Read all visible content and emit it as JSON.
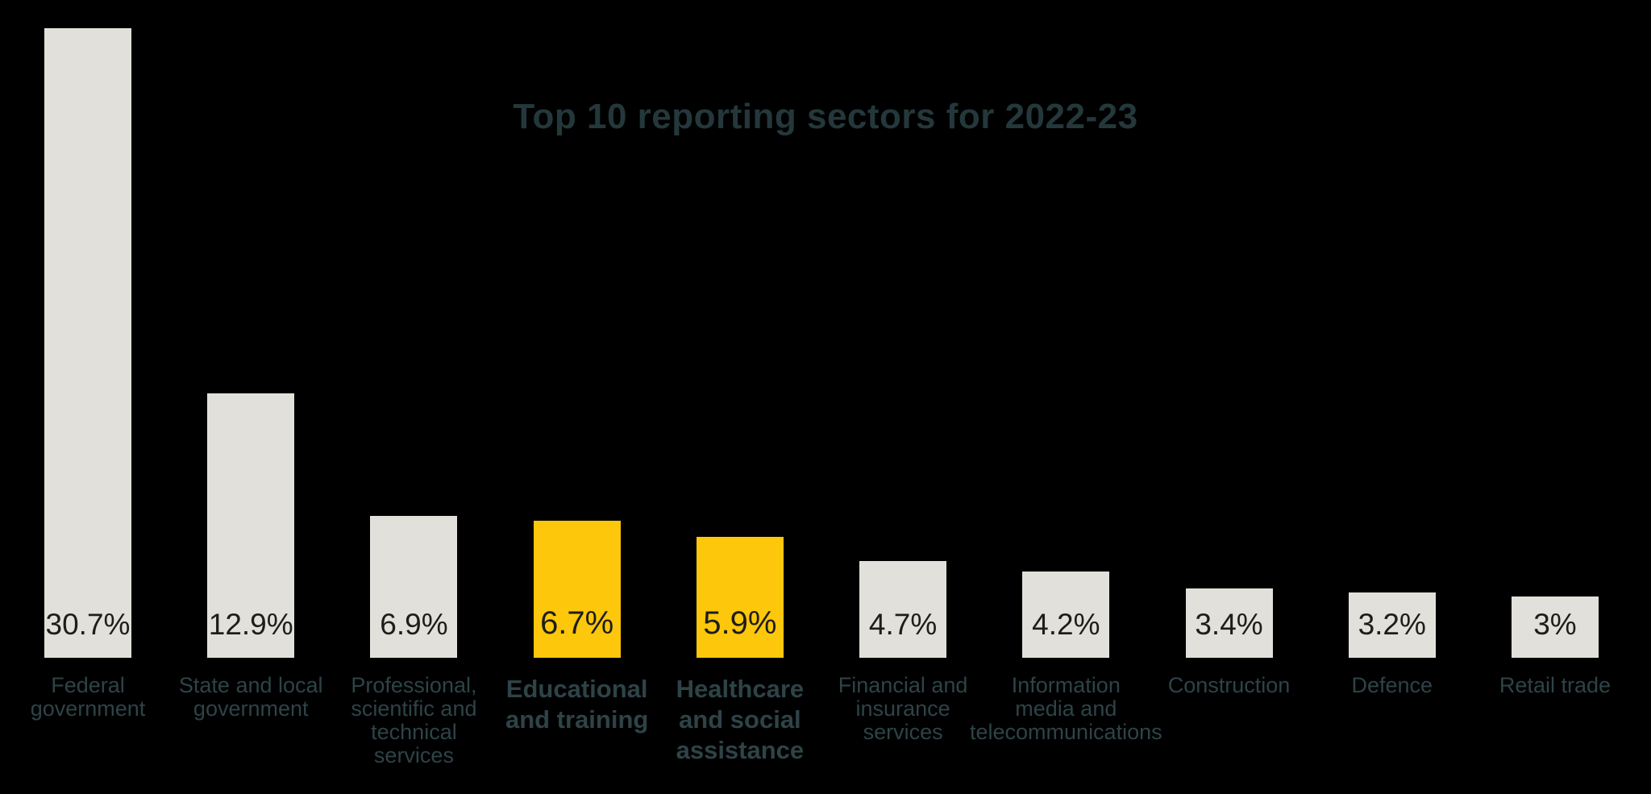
{
  "chart_data": {
    "type": "bar",
    "title": "Top 10 reporting sectors for 2022-23",
    "categories": [
      "Federal\ngovernment",
      "State and local\ngovernment",
      "Professional,\nscientific and\ntechnical\nservices",
      "Educational\nand training",
      "Healthcare\nand social\nassistance",
      "Financial and\ninsurance\nservices",
      "Information\nmedia and\ntelecommunications",
      "Construction",
      "Defence",
      "Retail trade"
    ],
    "values": [
      30.7,
      12.9,
      6.9,
      6.7,
      5.9,
      4.7,
      4.2,
      3.4,
      3.2,
      3
    ],
    "value_labels": [
      "30.7%",
      "12.9%",
      "6.9%",
      "6.7%",
      "5.9%",
      "4.7%",
      "4.2%",
      "3.4%",
      "3.2%",
      "3%"
    ],
    "highlighted": [
      false,
      false,
      false,
      true,
      true,
      false,
      false,
      false,
      false,
      false
    ],
    "xlabel": "",
    "ylabel": "",
    "ylim": [
      0,
      31
    ],
    "grid": false,
    "legend": false,
    "value_label_position": "inside-bottom",
    "colors": {
      "background": "#000000",
      "bar_default": "#E1E0DA",
      "bar_highlight": "#FDC70B",
      "value_text": "#1D1D1B",
      "category_text": "#2E4347",
      "title_text": "#24383C"
    }
  }
}
